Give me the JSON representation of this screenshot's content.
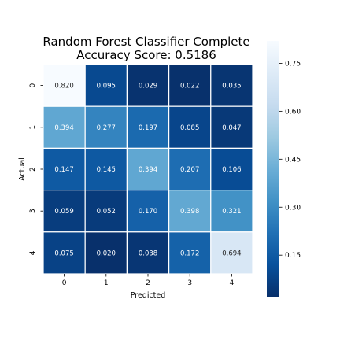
{
  "chart_data": {
    "type": "heatmap",
    "title": [
      "Random Forest Classifier Complete",
      "Accuracy Score: 0.5186"
    ],
    "xlabel": "Predicted",
    "ylabel": "Actual",
    "x_categories": [
      "0",
      "1",
      "2",
      "3",
      "4"
    ],
    "y_categories": [
      "0",
      "1",
      "2",
      "3",
      "4"
    ],
    "values": [
      [
        0.82,
        0.095,
        0.029,
        0.022,
        0.035
      ],
      [
        0.394,
        0.277,
        0.197,
        0.085,
        0.047
      ],
      [
        0.147,
        0.145,
        0.394,
        0.207,
        0.106
      ],
      [
        0.059,
        0.052,
        0.17,
        0.398,
        0.321
      ],
      [
        0.075,
        0.02,
        0.038,
        0.172,
        0.694
      ]
    ],
    "value_format": "0.000",
    "colormap": "Blues_r",
    "colorbar": {
      "range": [
        0.02,
        0.82
      ],
      "ticks": [
        0.15,
        0.3,
        0.45,
        0.6,
        0.75
      ],
      "tick_labels": [
        "0.15",
        "0.30",
        "0.45",
        "0.60",
        "0.75"
      ]
    },
    "grid": false,
    "cell_border_color": "#ffffff"
  }
}
